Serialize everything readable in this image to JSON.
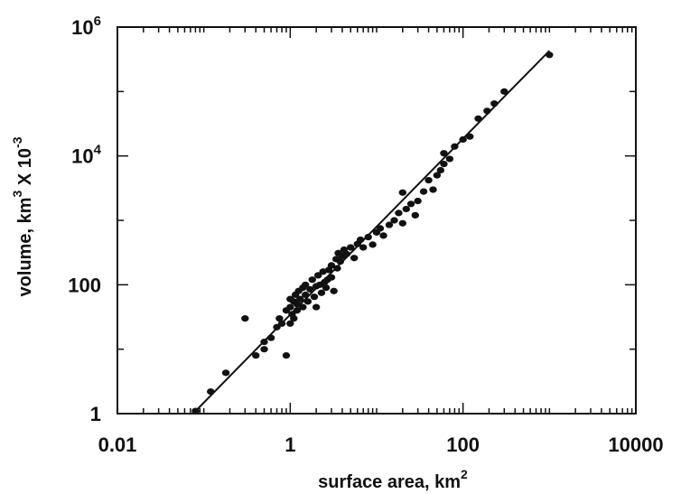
{
  "chart_data": {
    "type": "scatter",
    "x_scale": "log",
    "y_scale": "log",
    "xlim": [
      0.01,
      10000
    ],
    "ylim": [
      1,
      1000000
    ],
    "grid": false,
    "x_ticks": [
      {
        "value": 0.01,
        "label": "0.01"
      },
      {
        "value": 1,
        "label": "1"
      },
      {
        "value": 100,
        "label": "100"
      },
      {
        "value": 10000,
        "label": "10000"
      }
    ],
    "y_ticks": [
      {
        "value": 1,
        "base": "1",
        "exp": ""
      },
      {
        "value": 100,
        "base": "100",
        "exp": ""
      },
      {
        "value": 10000,
        "base": "10",
        "exp": "4"
      },
      {
        "value": 1000000,
        "base": "10",
        "exp": "6"
      }
    ],
    "xlabel": {
      "text": "surface area, km",
      "sup": "2"
    },
    "ylabel": {
      "part1": "volume, km",
      "sup1": "3",
      "part2": " X 10",
      "sup2": "-3"
    },
    "fit_line": {
      "x": [
        0.075,
        1000
      ],
      "y": [
        1,
        430000
      ]
    },
    "points": [
      [
        0.08,
        1.1
      ],
      [
        0.12,
        2.2
      ],
      [
        0.18,
        4.3
      ],
      [
        0.3,
        30
      ],
      [
        0.4,
        8
      ],
      [
        0.5,
        10
      ],
      [
        0.5,
        13
      ],
      [
        0.6,
        15
      ],
      [
        0.7,
        22
      ],
      [
        0.75,
        30
      ],
      [
        0.8,
        25
      ],
      [
        0.9,
        8
      ],
      [
        0.9,
        40
      ],
      [
        1.0,
        25
      ],
      [
        1.0,
        60
      ],
      [
        1.0,
        45
      ],
      [
        1.05,
        35
      ],
      [
        1.1,
        55
      ],
      [
        1.1,
        30
      ],
      [
        1.15,
        70
      ],
      [
        1.2,
        50
      ],
      [
        1.2,
        40
      ],
      [
        1.25,
        80
      ],
      [
        1.3,
        60
      ],
      [
        1.4,
        45
      ],
      [
        1.4,
        90
      ],
      [
        1.5,
        70
      ],
      [
        1.5,
        100
      ],
      [
        1.6,
        55
      ],
      [
        1.7,
        85
      ],
      [
        1.8,
        120
      ],
      [
        1.9,
        65
      ],
      [
        2.0,
        95
      ],
      [
        2.0,
        45
      ],
      [
        2.1,
        140
      ],
      [
        2.2,
        100
      ],
      [
        2.3,
        75
      ],
      [
        2.4,
        160
      ],
      [
        2.5,
        110
      ],
      [
        2.6,
        90
      ],
      [
        2.7,
        120
      ],
      [
        2.8,
        170
      ],
      [
        3.0,
        200
      ],
      [
        3.0,
        130
      ],
      [
        3.2,
        80
      ],
      [
        3.4,
        250
      ],
      [
        3.5,
        180
      ],
      [
        3.6,
        310
      ],
      [
        3.8,
        230
      ],
      [
        4.0,
        280
      ],
      [
        4.2,
        350
      ],
      [
        4.5,
        300
      ],
      [
        5.0,
        380
      ],
      [
        5.5,
        260
      ],
      [
        6.0,
        430
      ],
      [
        6.5,
        500
      ],
      [
        7.0,
        380
      ],
      [
        8.0,
        550
      ],
      [
        9.0,
        420
      ],
      [
        10,
        650
      ],
      [
        11,
        750
      ],
      [
        12,
        580
      ],
      [
        14,
        850
      ],
      [
        16,
        1000
      ],
      [
        18,
        1300
      ],
      [
        20,
        900
      ],
      [
        20,
        2700
      ],
      [
        22,
        1500
      ],
      [
        25,
        1800
      ],
      [
        28,
        1200
      ],
      [
        30,
        2000
      ],
      [
        35,
        2800
      ],
      [
        40,
        4200
      ],
      [
        45,
        3000
      ],
      [
        50,
        5000
      ],
      [
        55,
        6000
      ],
      [
        60,
        7500
      ],
      [
        70,
        9000
      ],
      [
        80,
        14000
      ],
      [
        60,
        11000
      ],
      [
        100,
        18000
      ],
      [
        120,
        20000
      ],
      [
        150,
        38000
      ],
      [
        190,
        50000
      ],
      [
        230,
        65000
      ],
      [
        300,
        100000
      ],
      [
        1000,
        370000
      ]
    ]
  }
}
